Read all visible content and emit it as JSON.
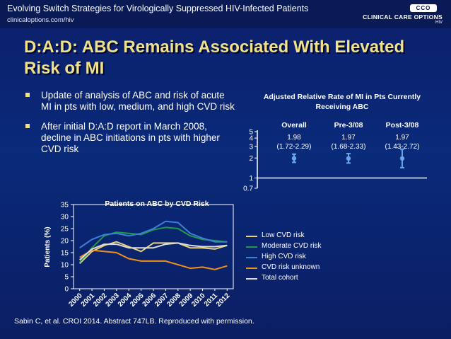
{
  "header": {
    "course_title": "Evolving Switch Strategies for Virologically Suppressed HIV-Infected Patients",
    "url": "clinicaloptions.com/hiv",
    "logo_badge": "CCO",
    "logo_name": "CLINICAL CARE OPTIONS",
    "logo_sub": "HIV"
  },
  "slide": {
    "title": "D:A:D: ABC Remains Associated With Elevated Risk of MI",
    "bullets": [
      "Update of analysis of ABC and risk of acute MI in pts with low, medium, and high CVD risk",
      "After initial D:A:D report in March 2008, decline in ABC initiations in pts with higher CVD risk"
    ],
    "footer": "Sabin C, et al. CROI 2014. Abstract 747LB. Reproduced with permission."
  },
  "colors": {
    "title": "#f1e28a",
    "background": "#0b2370",
    "point": "#6aa6e6",
    "low": "#e8d27a",
    "moderate": "#1f9a4a",
    "high": "#3f7fd8",
    "unknown": "#f0901a",
    "total": "#dcdcdc"
  },
  "chart_data": [
    {
      "type": "scatter",
      "title": "Adjusted Relative Rate of MI in Pts Currently Receiving ABC",
      "scale": "log",
      "ylim": [
        0.7,
        5
      ],
      "yticks": [
        "0.7",
        "1",
        "2",
        "3",
        "4",
        "5"
      ],
      "categories": [
        "Overall",
        "Pre-3/08",
        "Post-3/08"
      ],
      "estimates": [
        1.98,
        1.97,
        1.97
      ],
      "ci_low": [
        1.72,
        1.68,
        1.43
      ],
      "ci_high": [
        2.29,
        2.33,
        2.72
      ],
      "value_labels": [
        "1.98",
        "1.97",
        "1.97"
      ],
      "ci_labels": [
        "(1.72-2.29)",
        "(1.68-2.33)",
        "(1.43-2.72)"
      ]
    },
    {
      "type": "line",
      "title": "Patients on ABC by CVD Risk",
      "ylabel": "Patients (%)",
      "xlabel": "",
      "ylim": [
        0,
        35
      ],
      "yticks": [
        "0",
        "5",
        "10",
        "15",
        "20",
        "25",
        "30",
        "35"
      ],
      "x": [
        "2000",
        "2001",
        "2002",
        "2003",
        "2004",
        "2005",
        "2006",
        "2007",
        "2008",
        "2009",
        "2010",
        "2011",
        "2012"
      ],
      "series": [
        {
          "name": "Low CVD risk",
          "color": "#e8d27a",
          "values": [
            10.5,
            15.5,
            18,
            19.5,
            17.5,
            15.5,
            19,
            19,
            19,
            17,
            17,
            16.5,
            18
          ]
        },
        {
          "name": "Moderate CVD risk",
          "color": "#1f9a4a",
          "values": [
            11,
            17,
            22,
            23.5,
            23,
            22.5,
            24.5,
            25.5,
            25,
            22,
            20.5,
            20,
            19.5
          ]
        },
        {
          "name": "High CVD risk",
          "color": "#3f7fd8",
          "values": [
            17,
            20.5,
            22.5,
            23,
            22,
            23,
            25,
            28,
            27.5,
            23,
            21,
            19.5,
            19.5
          ]
        },
        {
          "name": "CVD risk unknown",
          "color": "#f0901a",
          "values": [
            13,
            16,
            15.5,
            15,
            12.5,
            11.5,
            11.5,
            11.5,
            10,
            8.5,
            9,
            8,
            9.5
          ]
        },
        {
          "name": "Total cohort",
          "color": "#dcdcdc",
          "values": [
            12,
            16.5,
            18.5,
            18.5,
            17,
            17,
            17,
            18.5,
            19,
            18,
            17.5,
            17.5,
            18
          ]
        }
      ]
    }
  ]
}
